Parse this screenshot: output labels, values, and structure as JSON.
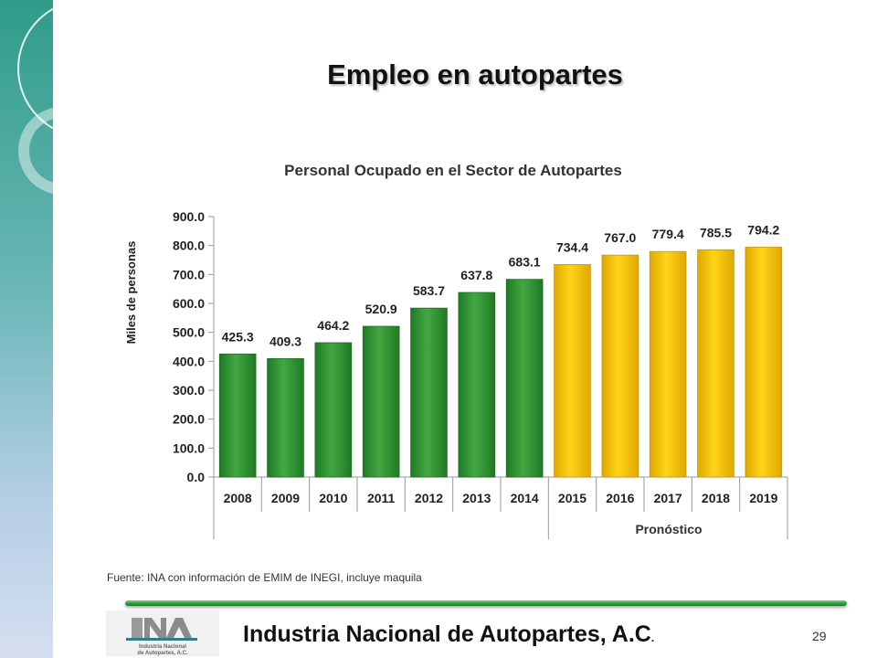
{
  "slide": {
    "title": "Empleo en autopartes",
    "source": "Fuente: INA con información de EMIM de INEGI, incluye maquila",
    "footer_org": "Industria Nacional de  Autopartes, A.C",
    "footer_org_suffix": ".",
    "page_number": "29",
    "logo_text": [
      "Industria Nacional",
      "de Autopartes, A.C."
    ]
  },
  "colors": {
    "historical": "#3a9a3a",
    "forecast": "#f6c400",
    "sidebar_dark": "#2f9c88",
    "sidebar_light": "#c9d6ea"
  },
  "chart_data": {
    "type": "bar",
    "title": "Personal Ocupado en el Sector de Autopartes",
    "ylabel": "Miles de personas",
    "xlabel": "",
    "ylim": [
      0,
      900
    ],
    "yticks": [
      "0.0",
      "100.0",
      "200.0",
      "300.0",
      "400.0",
      "500.0",
      "600.0",
      "700.0",
      "800.0",
      "900.0"
    ],
    "categories": [
      "2008",
      "2009",
      "2010",
      "2011",
      "2012",
      "2013",
      "2014",
      "2015",
      "2016",
      "2017",
      "2018",
      "2019"
    ],
    "values": [
      425.3,
      409.3,
      464.2,
      520.9,
      583.7,
      637.8,
      683.1,
      734.4,
      767.0,
      779.4,
      785.5,
      794.2
    ],
    "value_labels": [
      "425.3",
      "409.3",
      "464.2",
      "520.9",
      "583.7",
      "637.8",
      "683.1",
      "734.4",
      "767.0",
      "779.4",
      "785.5",
      "794.2"
    ],
    "forecast_start_index": 7,
    "group_label": "Pronóstico"
  }
}
